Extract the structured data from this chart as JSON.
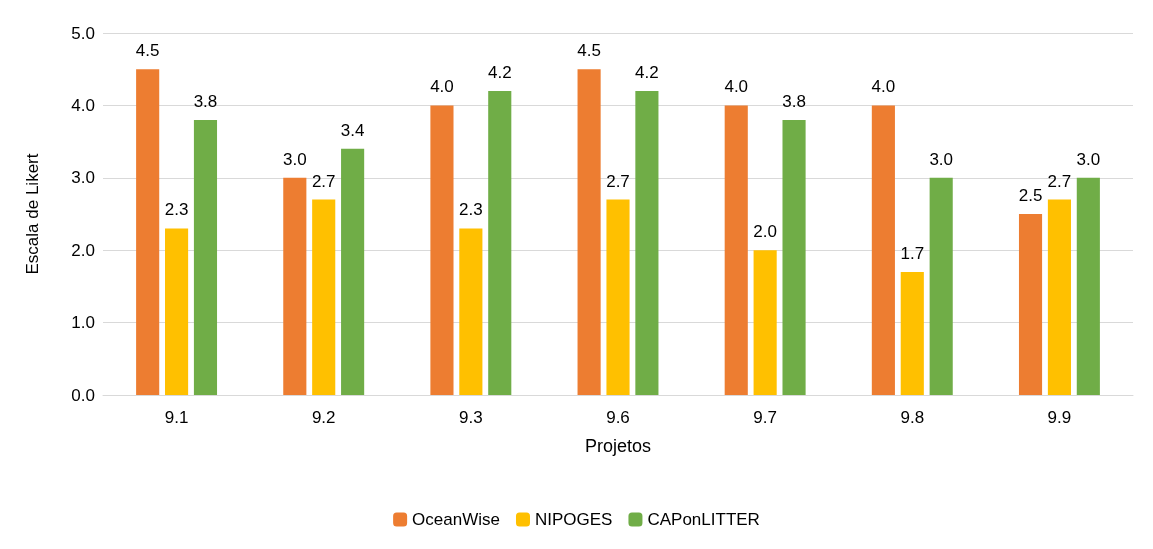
{
  "chart_data": {
    "type": "bar",
    "xlabel": "Projetos",
    "ylabel": "Escala de Likert",
    "categories": [
      "9.1",
      "9.2",
      "9.3",
      "9.6",
      "9.7",
      "9.8",
      "9.9"
    ],
    "series": [
      {
        "name": "OceanWise",
        "color": "#ed7d31",
        "values": [
          4.5,
          3.0,
          4.0,
          4.5,
          4.0,
          4.0,
          2.5
        ],
        "value_labels": [
          "4.5",
          "3.0",
          "4.0",
          "4.5",
          "4.0",
          "4.0",
          "2.5"
        ]
      },
      {
        "name": "NIPOGES",
        "color": "#ffc000",
        "values": [
          2.3,
          2.7,
          2.3,
          2.7,
          2.0,
          1.7,
          2.7
        ],
        "value_labels": [
          "2.3",
          "2.7",
          "2.3",
          "2.7",
          "2.0",
          "1.7",
          "2.7"
        ]
      },
      {
        "name": "CAPonLITTER",
        "color": "#70ad47",
        "values": [
          3.8,
          3.4,
          4.2,
          4.2,
          3.8,
          3.0,
          3.0
        ],
        "value_labels": [
          "3.8",
          "3.4",
          "4.2",
          "4.2",
          "3.8",
          "3.0",
          "3.0"
        ]
      }
    ],
    "ylim": [
      0,
      5
    ],
    "yticks": [
      {
        "value": 0,
        "label": "0.0"
      },
      {
        "value": 1,
        "label": "1.0"
      },
      {
        "value": 2,
        "label": "2.0"
      },
      {
        "value": 3,
        "label": "3.0"
      },
      {
        "value": 4,
        "label": "4.0"
      },
      {
        "value": 5,
        "label": "5.0"
      }
    ],
    "grid": "y",
    "legend": "bottom"
  }
}
